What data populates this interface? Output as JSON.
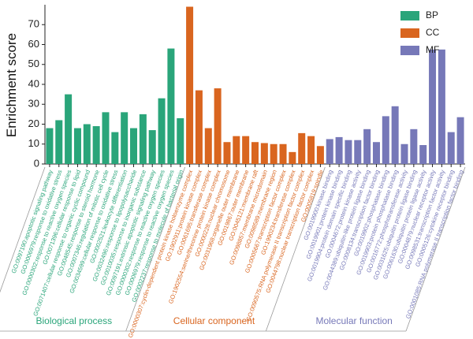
{
  "chart_data": {
    "type": "bar",
    "y_label": "Enrichment score",
    "ylim": [
      0,
      80
    ],
    "yticks": [
      0,
      10,
      20,
      30,
      40,
      50,
      60,
      70
    ],
    "series": [
      {
        "name": "BP",
        "label": "Biological process",
        "color": "#2aa57a",
        "categories": [
          "GO:0097190:apoptotic signaling pathway",
          "GO:0006979:response to oxidative stress",
          "GO:0000302:response to reactive oxygen species",
          "GO:0071396:cellular response to lipid",
          "GO:0071407:cellular response to organic cyclic compound",
          "GO:0048545:response to steroid hormone",
          "GO:0007346:regulation of mitotic cell cycle",
          "GO:0034599:cellular response to oxidative stress",
          "GO:0002521:leukocyte differentiation",
          "GO:0032496:response to lipopolysaccharide",
          "GO:0010035:response to inorganic substance",
          "GO:0097191:extrinsic apoptotic signaling pathway",
          "GO:0000302:response to reactive oxygen species",
          "GO:0006979:response to reactive oxygen species",
          "GO:0002237:response to molecule of bacterial origin"
        ],
        "values": [
          18,
          22,
          35,
          18,
          20,
          19,
          26,
          16,
          26,
          18,
          25,
          17,
          33,
          58,
          23
        ]
      },
      {
        "name": "CC",
        "label": "Cellular component",
        "color": "#d9651f",
        "categories": [
          "GO:0000307:cyclin-dependent protein kinase holoenzyme complex",
          "GO:1902911:protein kinase complex",
          "GO:0061695:transferase complex",
          "GO:1902554:serine/threonine protein kinase complex",
          "GO:0000228:nuclear chromosome",
          "GO:0031968:organelle outer membrane",
          "GO:0019867:outer membrane",
          "GO:0045121:membrane raft",
          "GO:0098857:membrane microdomain",
          "GO:0098589:membrane region",
          "GO:0005667:transcription factor complex",
          "GO:1990234:transferase complex",
          "GO:0090575:RNA polymerase II transcription factor complex",
          "GO:0044798:nuclear transcription factor complex",
          "GO:0005819:spindle"
        ],
        "values": [
          79,
          37,
          18,
          38,
          11,
          14,
          14,
          11,
          10.5,
          10,
          10,
          6,
          15.5,
          14,
          9
        ]
      },
      {
        "name": "MF",
        "label": "Molecular function",
        "color": "#7678b8",
        "categories": [
          "GO:0019900:kinase binding",
          "GO:0019901:protein kinase binding",
          "GO:0019904:protein domain specific binding",
          "GO:0004672:protein kinase activity",
          "GO:0044389:ubiquitin-like protein ligase binding",
          "GO:0008134:transcription factor binding",
          "GO:0019902:phosphatase binding",
          "GO:0019903:protein phosphatase binding",
          "GO:0016772:phosphotransferase activity",
          "GO:0031625:ubiquitin protein ligase binding",
          "GO:0061630:ubiquitin protein ligase activity",
          "GO:0004879:nuclear receptor activity",
          "GO:0098531:transcription factor activity",
          "GO:0005126:cytokine receptor binding",
          "GO:0001085:RNA polymerase II transcription factor binding"
        ],
        "values": [
          12.5,
          13.5,
          12,
          12,
          17.5,
          11,
          24,
          29,
          10,
          17.5,
          9.5,
          57.5,
          57.5,
          16,
          23.5
        ]
      }
    ]
  }
}
